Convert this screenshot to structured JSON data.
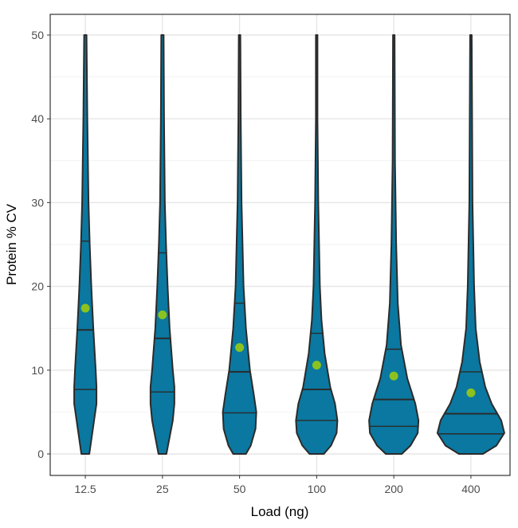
{
  "chart_data": {
    "type": "violin",
    "xlabel": "Load (ng)",
    "ylabel": "Protein % CV",
    "categories": [
      "12.5",
      "25",
      "50",
      "100",
      "200",
      "400"
    ],
    "yticks": [
      0,
      10,
      20,
      30,
      40,
      50
    ],
    "ylim": [
      0,
      50
    ],
    "grid": true,
    "colors": {
      "fill": "#0a78a0",
      "outline": "#2b2b2b",
      "mean": "#8cc21f"
    },
    "series": [
      {
        "category": "12.5",
        "mean": 17.4,
        "quantiles": [
          7.7,
          14.8,
          25.4
        ],
        "density": [
          [
            0,
            5
          ],
          [
            2,
            8
          ],
          [
            4,
            11
          ],
          [
            6,
            14
          ],
          [
            8,
            14
          ],
          [
            10,
            13
          ],
          [
            15,
            10
          ],
          [
            20,
            7.5
          ],
          [
            25,
            5.5
          ],
          [
            30,
            4
          ],
          [
            40,
            2.5
          ],
          [
            50,
            1.5
          ]
        ]
      },
      {
        "category": "25",
        "mean": 16.6,
        "quantiles": [
          7.4,
          13.8,
          24.0
        ],
        "density": [
          [
            0,
            5
          ],
          [
            2,
            9
          ],
          [
            4,
            13
          ],
          [
            6,
            15
          ],
          [
            8,
            15
          ],
          [
            10,
            13
          ],
          [
            15,
            9
          ],
          [
            20,
            6.5
          ],
          [
            25,
            4.5
          ],
          [
            30,
            3
          ],
          [
            40,
            2
          ],
          [
            50,
            1.5
          ]
        ]
      },
      {
        "category": "50",
        "mean": 12.7,
        "quantiles": [
          4.9,
          9.8,
          18.0
        ],
        "density": [
          [
            0,
            8
          ],
          [
            1,
            14
          ],
          [
            3,
            20
          ],
          [
            5,
            21
          ],
          [
            7,
            18
          ],
          [
            10,
            13
          ],
          [
            15,
            8
          ],
          [
            20,
            5
          ],
          [
            30,
            2.5
          ],
          [
            40,
            1.5
          ],
          [
            50,
            1
          ]
        ]
      },
      {
        "category": "100",
        "mean": 10.6,
        "quantiles": [
          4.0,
          7.7,
          14.4
        ],
        "density": [
          [
            0,
            9
          ],
          [
            1,
            18
          ],
          [
            2.5,
            25
          ],
          [
            4,
            26
          ],
          [
            6,
            23
          ],
          [
            8,
            17
          ],
          [
            12,
            10
          ],
          [
            16,
            6
          ],
          [
            20,
            4
          ],
          [
            30,
            2
          ],
          [
            40,
            1
          ],
          [
            50,
            1
          ]
        ]
      },
      {
        "category": "200",
        "mean": 9.3,
        "quantiles": [
          3.3,
          6.5,
          12.5
        ],
        "density": [
          [
            0,
            10
          ],
          [
            1,
            21
          ],
          [
            2.5,
            30
          ],
          [
            4,
            31
          ],
          [
            6,
            27
          ],
          [
            9,
            17
          ],
          [
            13,
            9
          ],
          [
            18,
            5
          ],
          [
            25,
            3
          ],
          [
            35,
            1.5
          ],
          [
            50,
            1
          ]
        ]
      },
      {
        "category": "400",
        "mean": 7.3,
        "quantiles": [
          2.4,
          4.8,
          9.8
        ],
        "density": [
          [
            0,
            15
          ],
          [
            1,
            32
          ],
          [
            2.5,
            42
          ],
          [
            4,
            38
          ],
          [
            6,
            26
          ],
          [
            8,
            18
          ],
          [
            11,
            11
          ],
          [
            15,
            6
          ],
          [
            20,
            4
          ],
          [
            30,
            2
          ],
          [
            50,
            1
          ]
        ]
      }
    ]
  }
}
